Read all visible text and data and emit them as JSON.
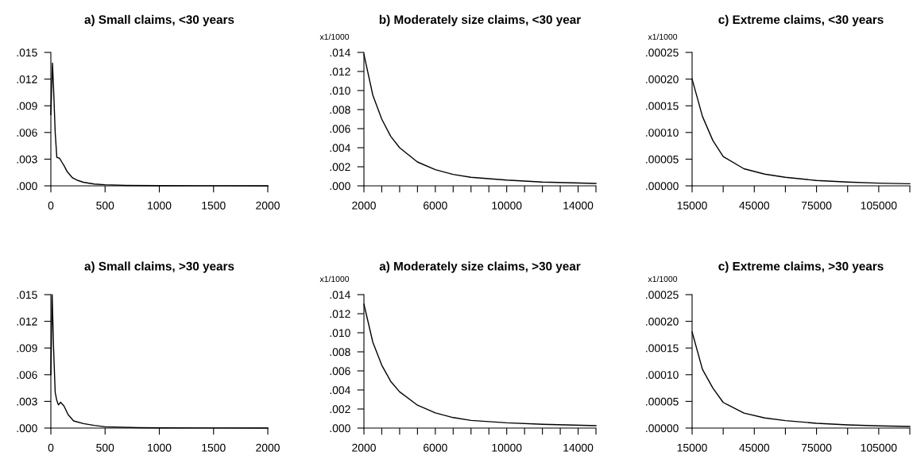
{
  "chart_data": [
    {
      "type": "line",
      "title": "a) Small claims, <30 years",
      "x": [
        0,
        15,
        25,
        40,
        55,
        80,
        100,
        125,
        150,
        200,
        250,
        300,
        400,
        500,
        700,
        1000,
        1500,
        2000
      ],
      "series": [
        {
          "color": "#000000",
          "values": [
            0.008,
            0.0138,
            0.011,
            0.006,
            0.0032,
            0.0031,
            0.0027,
            0.0022,
            0.0016,
            0.0009,
            0.0006,
            0.0004,
            0.0002,
            0.00012,
            5e-05,
            2e-05,
            1e-05,
            0.0
          ]
        }
      ],
      "xlim": [
        0,
        2000
      ],
      "xticks": [
        0,
        500,
        1000,
        1500,
        2000
      ],
      "ylim": [
        0,
        0.015
      ],
      "yticks": [
        {
          "value": 0,
          "label": ".000"
        },
        {
          "value": 0.003,
          "label": ".003"
        },
        {
          "value": 0.006,
          "label": ".006"
        },
        {
          "value": 0.009,
          "label": ".009"
        },
        {
          "value": 0.012,
          "label": ".012"
        },
        {
          "value": 0.015,
          "label": ".015"
        }
      ]
    },
    {
      "type": "line",
      "title": "b) Moderately size claims, <30 year",
      "annotations": [
        "x1/1000"
      ],
      "x": [
        2000,
        2500,
        3000,
        3500,
        4000,
        5000,
        6000,
        7000,
        8000,
        10000,
        12000,
        15000
      ],
      "series": [
        {
          "color": "#000000",
          "values": [
            0.0138,
            0.0095,
            0.007,
            0.0052,
            0.004,
            0.0025,
            0.0017,
            0.0012,
            0.0009,
            0.0006,
            0.0004,
            0.00025
          ]
        }
      ],
      "xlim": [
        2000,
        15000
      ],
      "xticks": [
        2000,
        {
          "value": 3000,
          "label": null
        },
        {
          "value": 4000,
          "label": null
        },
        {
          "value": 5000,
          "label": null
        },
        6000,
        {
          "value": 7000,
          "label": null
        },
        {
          "value": 8000,
          "label": null
        },
        {
          "value": 9000,
          "label": null
        },
        10000,
        {
          "value": 11000,
          "label": null
        },
        {
          "value": 12000,
          "label": null
        },
        {
          "value": 13000,
          "label": null
        },
        14000,
        {
          "value": 15000,
          "label": null
        }
      ],
      "ylim": [
        0,
        0.014
      ],
      "yticks": [
        {
          "value": 0,
          "label": ".000"
        },
        {
          "value": 0.002,
          "label": ".002"
        },
        {
          "value": 0.004,
          "label": ".004"
        },
        {
          "value": 0.006,
          "label": ".006"
        },
        {
          "value": 0.008,
          "label": ".008"
        },
        {
          "value": 0.01,
          "label": ".010"
        },
        {
          "value": 0.012,
          "label": ".012"
        },
        {
          "value": 0.014,
          "label": ".014"
        }
      ]
    },
    {
      "type": "line",
      "title": "c) Extreme claims, <30 years",
      "annotations": [
        "x1/1000"
      ],
      "x": [
        15000,
        20000,
        25000,
        30000,
        40000,
        50000,
        60000,
        75000,
        90000,
        105000,
        120000
      ],
      "series": [
        {
          "color": "#000000",
          "values": [
            0.0002,
            0.00013,
            8.5e-05,
            5.5e-05,
            3.2e-05,
            2.2e-05,
            1.6e-05,
            1e-05,
            7e-06,
            5e-06,
            4e-06
          ]
        }
      ],
      "xlim": [
        15000,
        120000
      ],
      "xticks": [
        15000,
        {
          "value": 30000,
          "label": null
        },
        45000,
        {
          "value": 60000,
          "label": null
        },
        75000,
        {
          "value": 90000,
          "label": null
        },
        105000,
        {
          "value": 120000,
          "label": null
        }
      ],
      "ylim": [
        0,
        0.00025
      ],
      "yticks": [
        {
          "value": 0,
          "label": ".00000"
        },
        {
          "value": 5e-05,
          "label": ".00005"
        },
        {
          "value": 0.0001,
          "label": ".00010"
        },
        {
          "value": 0.00015,
          "label": ".00015"
        },
        {
          "value": 0.0002,
          "label": ".00020"
        },
        {
          "value": 0.00025,
          "label": ".00025"
        }
      ]
    },
    {
      "type": "line",
      "title": "a) Small claims, >30 years",
      "x": [
        0,
        12,
        25,
        40,
        55,
        70,
        90,
        120,
        160,
        210,
        300,
        400,
        500,
        800,
        1000,
        1500,
        2000
      ],
      "series": [
        {
          "color": "#000000",
          "values": [
            0.006,
            0.015,
            0.009,
            0.004,
            0.0031,
            0.0026,
            0.0029,
            0.0025,
            0.0015,
            0.0008,
            0.0005,
            0.0003,
            0.00015,
            5e-05,
            2e-05,
            1e-05,
            0.0
          ]
        }
      ],
      "xlim": [
        0,
        2000
      ],
      "xticks": [
        0,
        500,
        1000,
        1500,
        2000
      ],
      "ylim": [
        0,
        0.015
      ],
      "yticks": [
        {
          "value": 0,
          "label": ".000"
        },
        {
          "value": 0.003,
          "label": ".003"
        },
        {
          "value": 0.006,
          "label": ".006"
        },
        {
          "value": 0.009,
          "label": ".009"
        },
        {
          "value": 0.012,
          "label": ".012"
        },
        {
          "value": 0.015,
          "label": ".015"
        }
      ]
    },
    {
      "type": "line",
      "title": "a) Moderately size claims, >30 year",
      "annotations": [
        "x1/1000"
      ],
      "x": [
        2000,
        2500,
        3000,
        3500,
        4000,
        5000,
        6000,
        7000,
        8000,
        10000,
        12000,
        15000
      ],
      "series": [
        {
          "color": "#000000",
          "values": [
            0.013,
            0.009,
            0.0066,
            0.0049,
            0.0038,
            0.0024,
            0.0016,
            0.0011,
            0.0008,
            0.00055,
            0.0004,
            0.00025
          ]
        }
      ],
      "xlim": [
        2000,
        15000
      ],
      "xticks": [
        2000,
        {
          "value": 3000,
          "label": null
        },
        {
          "value": 4000,
          "label": null
        },
        {
          "value": 5000,
          "label": null
        },
        6000,
        {
          "value": 7000,
          "label": null
        },
        {
          "value": 8000,
          "label": null
        },
        {
          "value": 9000,
          "label": null
        },
        10000,
        {
          "value": 11000,
          "label": null
        },
        {
          "value": 12000,
          "label": null
        },
        {
          "value": 13000,
          "label": null
        },
        14000,
        {
          "value": 15000,
          "label": null
        }
      ],
      "ylim": [
        0,
        0.014
      ],
      "yticks": [
        {
          "value": 0,
          "label": ".000"
        },
        {
          "value": 0.002,
          "label": ".002"
        },
        {
          "value": 0.004,
          "label": ".004"
        },
        {
          "value": 0.006,
          "label": ".006"
        },
        {
          "value": 0.008,
          "label": ".008"
        },
        {
          "value": 0.01,
          "label": ".010"
        },
        {
          "value": 0.012,
          "label": ".012"
        },
        {
          "value": 0.014,
          "label": ".014"
        }
      ]
    },
    {
      "type": "line",
      "title": "c) Extreme claims, >30 years",
      "annotations": [
        "x1/1000"
      ],
      "x": [
        15000,
        20000,
        25000,
        30000,
        40000,
        50000,
        60000,
        75000,
        90000,
        105000,
        120000
      ],
      "series": [
        {
          "color": "#000000",
          "values": [
            0.00018,
            0.00011,
            7.5e-05,
            4.8e-05,
            2.8e-05,
            1.9e-05,
            1.4e-05,
            9e-06,
            6e-06,
            4e-06,
            3e-06
          ]
        }
      ],
      "xlim": [
        15000,
        120000
      ],
      "xticks": [
        15000,
        {
          "value": 30000,
          "label": null
        },
        45000,
        {
          "value": 60000,
          "label": null
        },
        75000,
        {
          "value": 90000,
          "label": null
        },
        105000,
        {
          "value": 120000,
          "label": null
        }
      ],
      "ylim": [
        0,
        0.00025
      ],
      "yticks": [
        {
          "value": 0,
          "label": ".00000"
        },
        {
          "value": 5e-05,
          "label": ".00005"
        },
        {
          "value": 0.0001,
          "label": ".00010"
        },
        {
          "value": 0.00015,
          "label": ".00015"
        },
        {
          "value": 0.0002,
          "label": ".00020"
        },
        {
          "value": 0.00025,
          "label": ".00025"
        }
      ]
    }
  ]
}
